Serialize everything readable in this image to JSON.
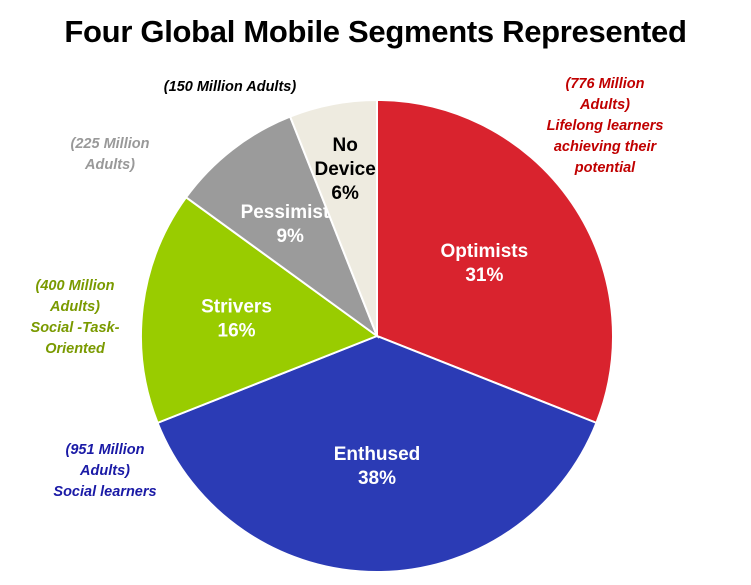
{
  "chart_data": {
    "type": "pie",
    "title": "Four Global Mobile Segments Represented",
    "start": "top",
    "direction": "clockwise",
    "slices": [
      {
        "label": "Optimists",
        "value": 31,
        "value_label": "31%",
        "color": "#d9232e",
        "text_color": "#ffffff",
        "annotation": [
          "(776 Million",
          "Adults)",
          "Lifelong learners",
          "achieving their",
          "potential"
        ],
        "annotation_color": "#c00000"
      },
      {
        "label": "Enthused",
        "value": 38,
        "value_label": "38%",
        "color": "#2b3bb5",
        "text_color": "#ffffff",
        "annotation": [
          "(951 Million",
          "Adults)",
          "Social learners"
        ],
        "annotation_color": "#1a1aa6"
      },
      {
        "label": "Strivers",
        "value": 16,
        "value_label": "16%",
        "color": "#99cc00",
        "text_color": "#ffffff",
        "annotation": [
          "(400 Million",
          "Adults)",
          "Social -Task-",
          "Oriented"
        ],
        "annotation_color": "#7a9a00"
      },
      {
        "label": "Pessimists",
        "value": 9,
        "value_label": "9%",
        "color": "#9b9b9b",
        "text_color": "#ffffff",
        "annotation": [
          "(225 Million",
          "Adults)"
        ],
        "annotation_color": "#999999"
      },
      {
        "label": "No Device",
        "value": 6,
        "value_label": "6%",
        "color": "#eeebe0",
        "text_color": "#000000",
        "annotation": [
          "(150 Million Adults)"
        ],
        "annotation_color": "#000000"
      }
    ]
  }
}
